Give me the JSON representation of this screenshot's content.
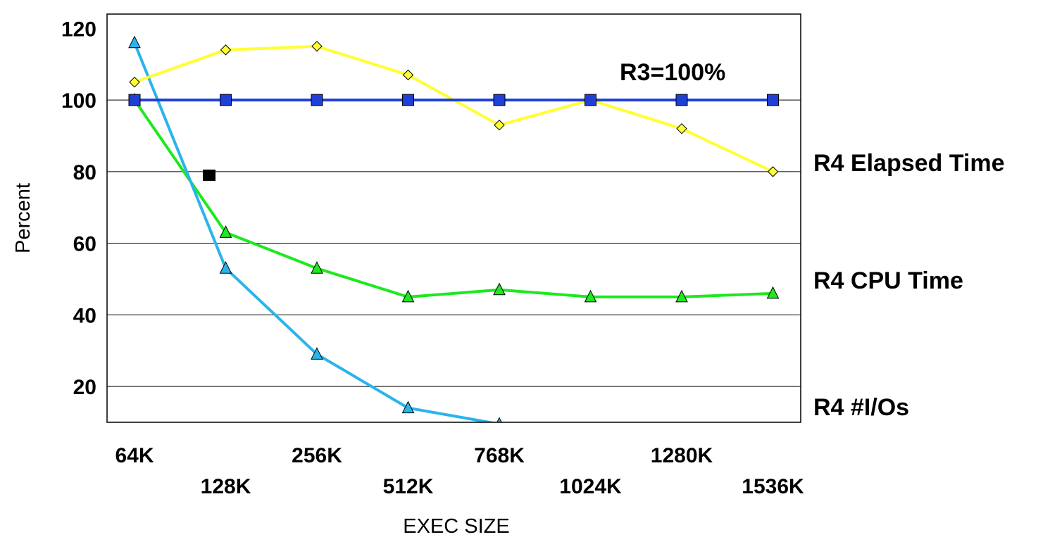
{
  "chart_data": {
    "type": "line",
    "xlabel": "EXEC SIZE",
    "ylabel": "Percent",
    "ylim": [
      10,
      124
    ],
    "yticks": [
      20,
      40,
      60,
      80,
      100,
      120
    ],
    "grid": "horizontal",
    "categories": [
      "64K",
      "128K",
      "256K",
      "512K",
      "768K",
      "1024K",
      "1280K",
      "1536K"
    ],
    "annotation": {
      "text": "R3=100%"
    },
    "series": [
      {
        "name": "",
        "color": "#1f3fd6",
        "marker": "square-blue",
        "values": [
          100,
          100,
          100,
          100,
          100,
          100,
          100,
          100
        ]
      },
      {
        "name": "R4 Elapsed Time",
        "color": "#ffff33",
        "marker": "diamond",
        "values": [
          105,
          114,
          115,
          107,
          93,
          100,
          92,
          80
        ]
      },
      {
        "name": "R4 CPU Time",
        "color": "#1ee81e",
        "marker": "triangle",
        "values": [
          100,
          63,
          53,
          45,
          47,
          45,
          45,
          46
        ]
      },
      {
        "name": "R4 #I/Os",
        "color": "#2ab4ea",
        "marker": "triangle",
        "values": [
          116,
          53,
          29,
          14,
          9.5,
          null,
          null,
          null
        ]
      }
    ],
    "stray_marker": {
      "x_position": 1.83,
      "y": 79,
      "color": "#000000"
    }
  }
}
